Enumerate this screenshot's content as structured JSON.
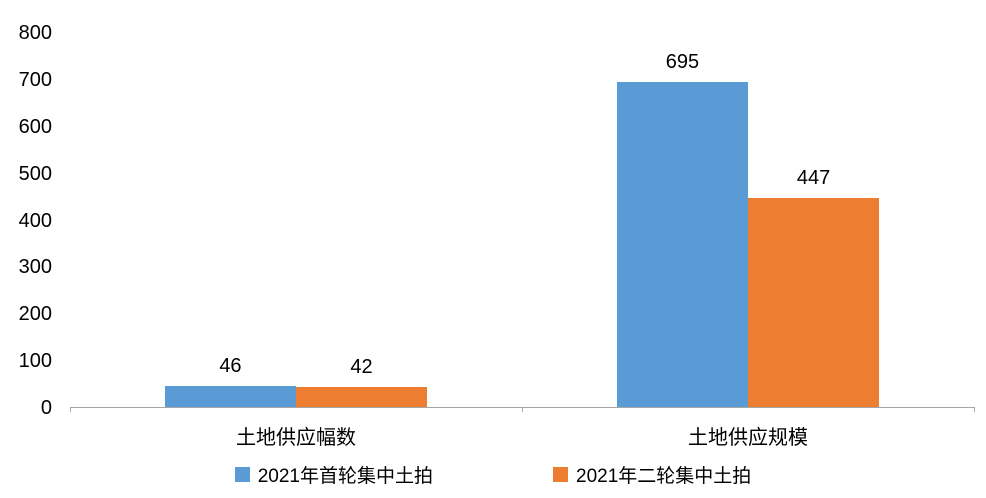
{
  "chart_data": {
    "type": "bar",
    "title": "",
    "categories": [
      "土地供应幅数",
      "土地供应规模"
    ],
    "series": [
      {
        "name": "2021年首轮集中土拍",
        "color": "#5B9BD5",
        "values": [
          46,
          695
        ]
      },
      {
        "name": "2021年二轮集中土拍",
        "color": "#ED7D31",
        "values": [
          42,
          447
        ]
      }
    ],
    "ylim": [
      0,
      800
    ],
    "yticks": [
      0,
      100,
      200,
      300,
      400,
      500,
      600,
      700,
      800
    ],
    "xlabel": "",
    "ylabel": "",
    "grid": false,
    "legend_position": "bottom",
    "axis_color": "#a6a6a6"
  }
}
